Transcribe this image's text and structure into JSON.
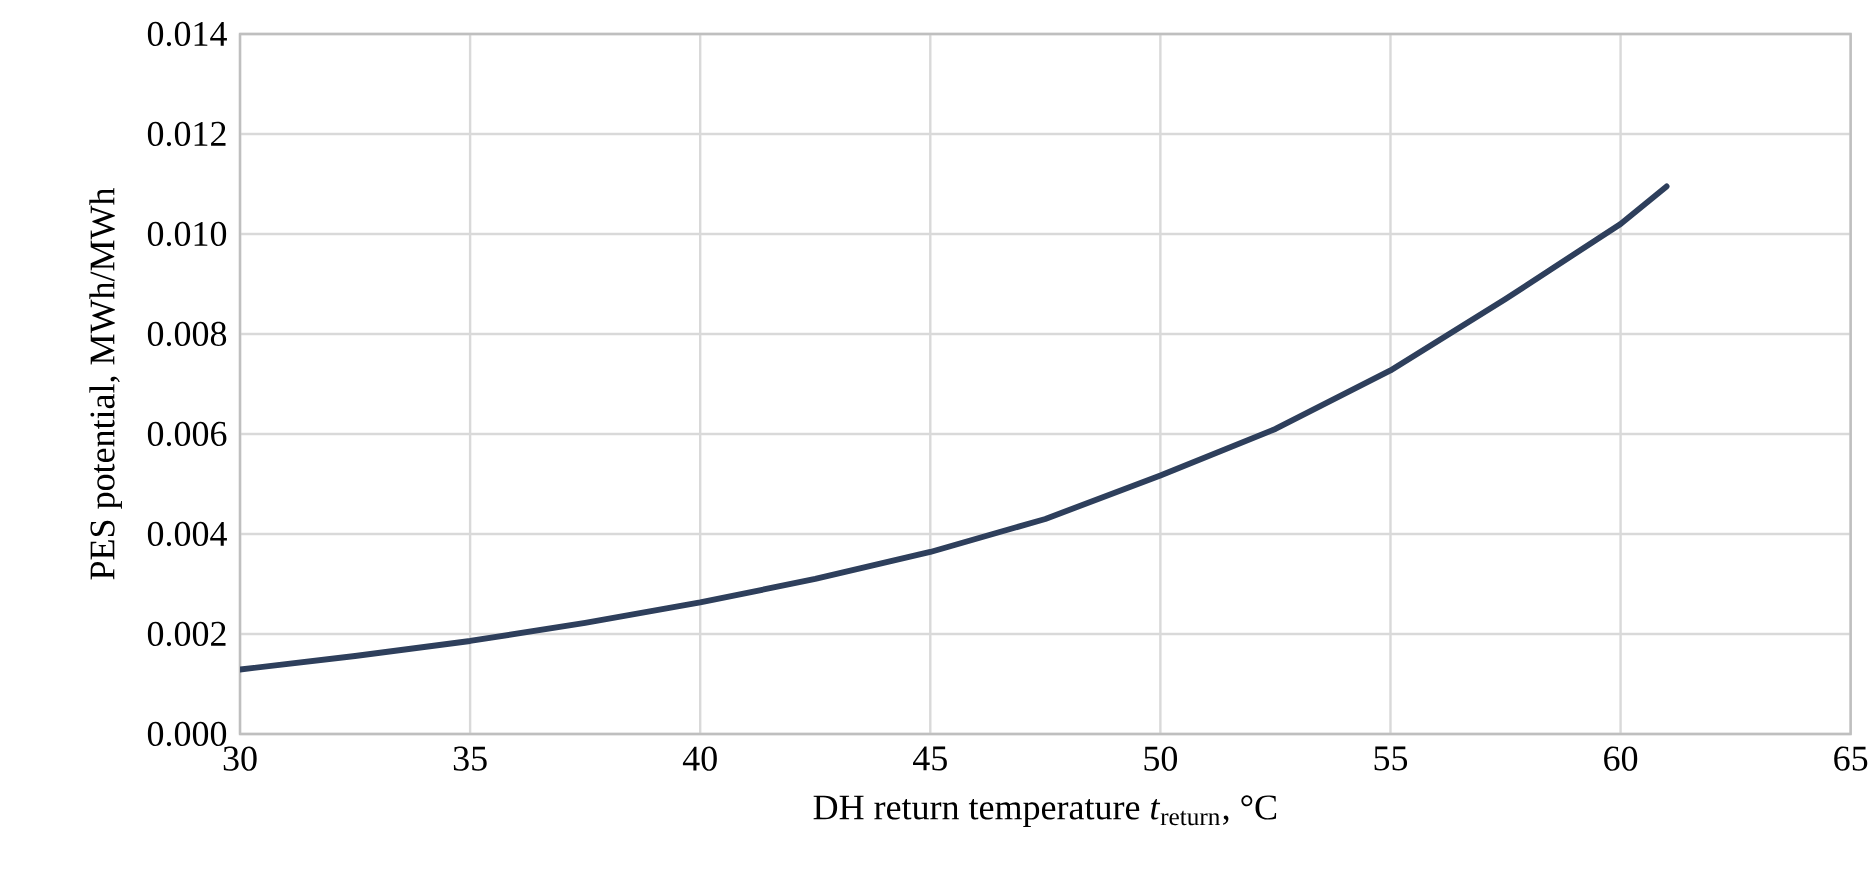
{
  "chart_data": {
    "type": "line",
    "xlabel": "DH return temperature *t*$_{return}$, °C",
    "ylabel": "PES potential, MWh/MWh",
    "x": [
      30,
      32.5,
      35,
      37.5,
      40,
      42.5,
      45,
      47.5,
      50,
      52.5,
      55,
      57.5,
      60,
      61
    ],
    "values": [
      0.00129,
      0.00156,
      0.00186,
      0.00222,
      0.00263,
      0.0031,
      0.00364,
      0.0043,
      0.00517,
      0.0061,
      0.00727,
      0.0087,
      0.0102,
      0.01095
    ],
    "color": "#2e3f5c",
    "xlim": [
      30,
      65
    ],
    "xticks": [
      30,
      35,
      40,
      45,
      50,
      55,
      60,
      65
    ],
    "ylim": [
      0,
      0.014
    ],
    "yticks": [
      {
        "value": 0,
        "label": "0.000"
      },
      {
        "value": 0.002,
        "label": "0.002"
      },
      {
        "value": 0.004,
        "label": "0.004"
      },
      {
        "value": 0.006,
        "label": "0.006"
      },
      {
        "value": 0.008,
        "label": "0.008"
      },
      {
        "value": 0.01,
        "label": "0.010"
      },
      {
        "value": 0.012,
        "label": "0.012"
      },
      {
        "value": 0.014,
        "label": "0.014"
      }
    ],
    "grid": true
  }
}
